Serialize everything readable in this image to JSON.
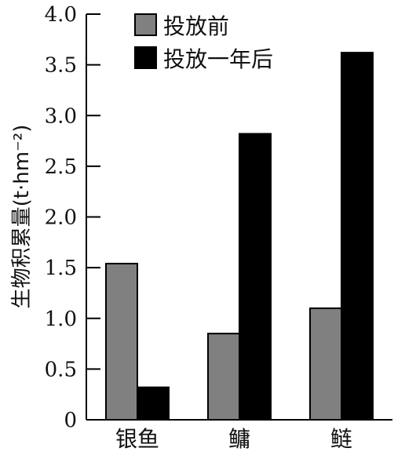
{
  "chart_data": {
    "type": "bar",
    "categories": [
      "银鱼",
      "鳙",
      "鲢"
    ],
    "series": [
      {
        "name": "投放前",
        "values": [
          1.54,
          0.85,
          1.1
        ],
        "color": "#808080"
      },
      {
        "name": "投放一年后",
        "values": [
          0.32,
          2.82,
          3.62
        ],
        "color": "#000000"
      }
    ],
    "ylabel": "生物积累量(t·hm⁻²)",
    "xlabel": "",
    "ylim": [
      0,
      4.0
    ],
    "yticks": [
      "0",
      "0.5",
      "1.0",
      "1.5",
      "2.0",
      "2.5",
      "3.0",
      "3.5",
      "4.0"
    ],
    "legend_position": "top-left-inside",
    "grid": false
  }
}
